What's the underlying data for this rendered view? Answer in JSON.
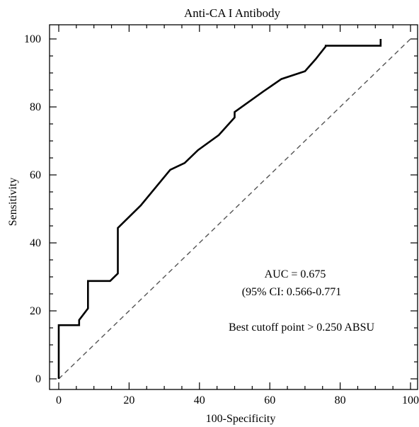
{
  "chart_data": {
    "type": "line",
    "title": "Anti-CA I Antibody",
    "xlabel": "100-Specificity",
    "ylabel": "Sensitivity",
    "xlim": [
      0,
      100
    ],
    "ylim": [
      0,
      100
    ],
    "x_ticks": [
      0,
      20,
      40,
      60,
      80,
      100
    ],
    "y_ticks": [
      0,
      20,
      40,
      60,
      80,
      100
    ],
    "x_tick_labels": [
      "0",
      "20",
      "40",
      "60",
      "80",
      "100"
    ],
    "y_tick_labels": [
      "0",
      "20",
      "40",
      "60",
      "80",
      "100"
    ],
    "grid": false,
    "legend": "none",
    "series": [
      {
        "style": "solid",
        "color": "#000000",
        "x": [
          0,
          0,
          5.8,
          5.8,
          8.3,
          8.3,
          14.6,
          16.8,
          16.8,
          23.3,
          31.7,
          35.8,
          39.6,
          45.5,
          50.0,
          50.0,
          58.5,
          63.3,
          70.0,
          73.0,
          75.9,
          75.9,
          80.5,
          91.5,
          91.5
        ],
        "y": [
          0,
          15.8,
          15.8,
          17.3,
          20.7,
          28.8,
          28.8,
          31.0,
          44.4,
          51.0,
          61.5,
          63.5,
          67.3,
          71.7,
          76.9,
          78.5,
          84.8,
          88.2,
          90.5,
          94.0,
          97.8,
          98.0,
          98.0,
          98.0,
          100
        ]
      },
      {
        "style": "dashed",
        "color": "#555555",
        "x": [
          0,
          100
        ],
        "y": [
          0,
          100
        ]
      }
    ],
    "annotations": {
      "auc": "AUC = 0.675",
      "ci": "(95% CI: 0.566-0.771",
      "cutoff": "Best cutoff point > 0.250 ABSU"
    }
  }
}
